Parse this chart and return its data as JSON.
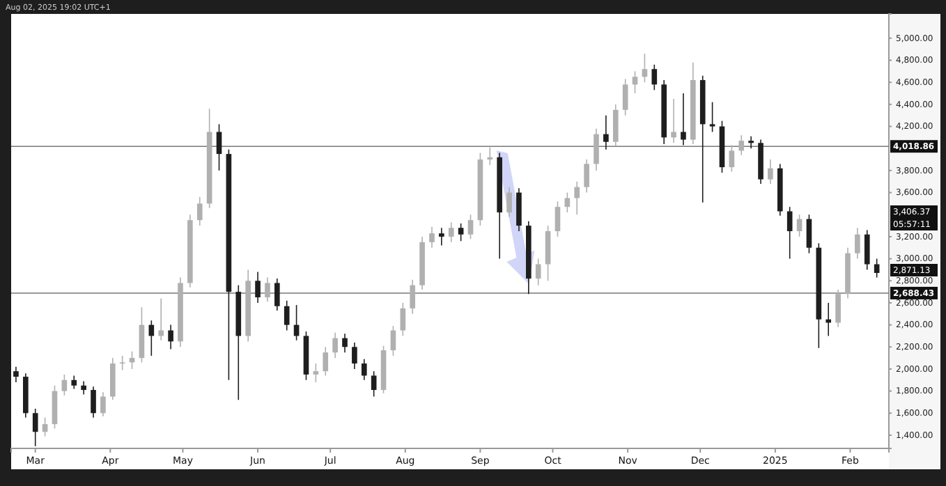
{
  "chart_data": {
    "type": "candlestick",
    "x": [
      "2024-02-22",
      "2024-02-26",
      "2024-03-01",
      "2024-03-05",
      "2024-03-09",
      "2024-03-13",
      "2024-03-17",
      "2024-03-21",
      "2024-03-25",
      "2024-03-29",
      "2024-04-02",
      "2024-04-06",
      "2024-04-10",
      "2024-04-14",
      "2024-04-18",
      "2024-04-22",
      "2024-04-26",
      "2024-04-30",
      "2024-05-04",
      "2024-05-08",
      "2024-05-12",
      "2024-05-16",
      "2024-05-20",
      "2024-05-24",
      "2024-05-28",
      "2024-06-01",
      "2024-06-05",
      "2024-06-09",
      "2024-06-13",
      "2024-06-17",
      "2024-06-21",
      "2024-06-25",
      "2024-06-29",
      "2024-07-03",
      "2024-07-07",
      "2024-07-11",
      "2024-07-15",
      "2024-07-19",
      "2024-07-23",
      "2024-07-27",
      "2024-07-31",
      "2024-08-04",
      "2024-08-08",
      "2024-08-12",
      "2024-08-16",
      "2024-08-20",
      "2024-08-24",
      "2024-08-28",
      "2024-09-01",
      "2024-09-05",
      "2024-09-09",
      "2024-09-13",
      "2024-09-17",
      "2024-09-21",
      "2024-09-25",
      "2024-09-29",
      "2024-10-03",
      "2024-10-07",
      "2024-10-11",
      "2024-10-15",
      "2024-10-19",
      "2024-10-23",
      "2024-10-27",
      "2024-10-31",
      "2024-11-04",
      "2024-11-08",
      "2024-11-12",
      "2024-11-16",
      "2024-11-20",
      "2024-11-24",
      "2024-11-28",
      "2024-12-02",
      "2024-12-06",
      "2024-12-10",
      "2024-12-14",
      "2024-12-18",
      "2024-12-22",
      "2024-12-26",
      "2024-12-30",
      "2025-01-03",
      "2025-01-07",
      "2025-01-11",
      "2025-01-15",
      "2025-01-19",
      "2025-01-23",
      "2025-01-27",
      "2025-01-31",
      "2025-02-04",
      "2025-02-08",
      "2025-02-12"
    ],
    "ohlc": [
      [
        1980,
        2020,
        1880,
        1930
      ],
      [
        1930,
        1960,
        1560,
        1600
      ],
      [
        1600,
        1640,
        1300,
        1430
      ],
      [
        1430,
        1560,
        1390,
        1500
      ],
      [
        1500,
        1850,
        1460,
        1800
      ],
      [
        1800,
        1950,
        1760,
        1900
      ],
      [
        1900,
        1940,
        1820,
        1850
      ],
      [
        1850,
        1890,
        1770,
        1810
      ],
      [
        1810,
        1840,
        1560,
        1600
      ],
      [
        1600,
        1790,
        1570,
        1750
      ],
      [
        1750,
        2100,
        1720,
        2050
      ],
      [
        2050,
        2120,
        1990,
        2060
      ],
      [
        2060,
        2160,
        2000,
        2100
      ],
      [
        2100,
        2560,
        2060,
        2400
      ],
      [
        2400,
        2440,
        2120,
        2300
      ],
      [
        2300,
        2640,
        2260,
        2350
      ],
      [
        2350,
        2400,
        2180,
        2250
      ],
      [
        2250,
        2830,
        2200,
        2780
      ],
      [
        2780,
        3400,
        2740,
        3350
      ],
      [
        3350,
        3560,
        3300,
        3500
      ],
      [
        3500,
        4360,
        3460,
        4150
      ],
      [
        4150,
        4220,
        3800,
        3950
      ],
      [
        3950,
        3990,
        1900,
        2700
      ],
      [
        2700,
        2760,
        1720,
        2300
      ],
      [
        2300,
        2900,
        2250,
        2800
      ],
      [
        2800,
        2880,
        2600,
        2650
      ],
      [
        2650,
        2830,
        2610,
        2780
      ],
      [
        2780,
        2820,
        2530,
        2570
      ],
      [
        2570,
        2620,
        2350,
        2400
      ],
      [
        2400,
        2580,
        2260,
        2300
      ],
      [
        2300,
        2340,
        1900,
        1950
      ],
      [
        1950,
        2050,
        1880,
        1980
      ],
      [
        1980,
        2200,
        1940,
        2150
      ],
      [
        2150,
        2330,
        2100,
        2280
      ],
      [
        2280,
        2320,
        2150,
        2200
      ],
      [
        2200,
        2240,
        2000,
        2050
      ],
      [
        2050,
        2090,
        1900,
        1940
      ],
      [
        1940,
        1980,
        1750,
        1810
      ],
      [
        1810,
        2210,
        1780,
        2170
      ],
      [
        2170,
        2390,
        2120,
        2350
      ],
      [
        2350,
        2600,
        2300,
        2550
      ],
      [
        2550,
        2810,
        2500,
        2760
      ],
      [
        2760,
        3200,
        2720,
        3150
      ],
      [
        3150,
        3290,
        3100,
        3230
      ],
      [
        3230,
        3280,
        3120,
        3200
      ],
      [
        3200,
        3330,
        3150,
        3280
      ],
      [
        3280,
        3320,
        3160,
        3220
      ],
      [
        3220,
        3400,
        3180,
        3350
      ],
      [
        3350,
        3960,
        3300,
        3900
      ],
      [
        3900,
        4010,
        3850,
        3920
      ],
      [
        3920,
        3960,
        3000,
        3420
      ],
      [
        3420,
        3650,
        3380,
        3600
      ],
      [
        3600,
        3640,
        3250,
        3300
      ],
      [
        3300,
        3340,
        2680,
        2820
      ],
      [
        2820,
        3000,
        2760,
        2950
      ],
      [
        2950,
        3300,
        2800,
        3250
      ],
      [
        3250,
        3520,
        3200,
        3470
      ],
      [
        3470,
        3600,
        3420,
        3550
      ],
      [
        3550,
        3700,
        3400,
        3650
      ],
      [
        3650,
        3900,
        3600,
        3860
      ],
      [
        3860,
        4180,
        3800,
        4130
      ],
      [
        4130,
        4300,
        3990,
        4060
      ],
      [
        4060,
        4400,
        4020,
        4350
      ],
      [
        4350,
        4630,
        4300,
        4580
      ],
      [
        4580,
        4700,
        4500,
        4650
      ],
      [
        4650,
        4860,
        4600,
        4720
      ],
      [
        4720,
        4760,
        4530,
        4580
      ],
      [
        4580,
        4620,
        4040,
        4100
      ],
      [
        4100,
        4450,
        4050,
        4150
      ],
      [
        4150,
        4500,
        4030,
        4080
      ],
      [
        4080,
        4780,
        4040,
        4620
      ],
      [
        4620,
        4660,
        3510,
        4220
      ],
      [
        4220,
        4420,
        4150,
        4200
      ],
      [
        4200,
        4250,
        3780,
        3830
      ],
      [
        3830,
        4030,
        3790,
        3980
      ],
      [
        3980,
        4120,
        3940,
        4070
      ],
      [
        4070,
        4110,
        4000,
        4050
      ],
      [
        4050,
        4080,
        3680,
        3720
      ],
      [
        3720,
        3900,
        3680,
        3820
      ],
      [
        3820,
        3860,
        3390,
        3430
      ],
      [
        3430,
        3470,
        3000,
        3250
      ],
      [
        3250,
        3400,
        3200,
        3360
      ],
      [
        3360,
        3400,
        3050,
        3100
      ],
      [
        3100,
        3140,
        2190,
        2450
      ],
      [
        2450,
        2600,
        2300,
        2420
      ],
      [
        2420,
        2720,
        2380,
        2680
      ],
      [
        2680,
        3100,
        2640,
        3050
      ],
      [
        3050,
        3280,
        3000,
        3220
      ],
      [
        3220,
        3260,
        2900,
        2950
      ],
      [
        2950,
        3000,
        2830,
        2871.13
      ]
    ],
    "colors": [
      "#1e1e1e",
      "#1e1e1e",
      "#1e1e1e",
      "#b0b0b0",
      "#b0b0b0",
      "#b0b0b0",
      "#1e1e1e",
      "#1e1e1e",
      "#1e1e1e",
      "#b0b0b0",
      "#b0b0b0",
      "#b0b0b0",
      "#b0b0b0",
      "#b0b0b0",
      "#1e1e1e",
      "#b0b0b0",
      "#1e1e1e",
      "#b0b0b0",
      "#b0b0b0",
      "#b0b0b0",
      "#b0b0b0",
      "#1e1e1e",
      "#1e1e1e",
      "#1e1e1e",
      "#b0b0b0",
      "#1e1e1e",
      "#b0b0b0",
      "#1e1e1e",
      "#1e1e1e",
      "#1e1e1e",
      "#1e1e1e",
      "#b0b0b0",
      "#b0b0b0",
      "#b0b0b0",
      "#1e1e1e",
      "#1e1e1e",
      "#1e1e1e",
      "#1e1e1e",
      "#b0b0b0",
      "#b0b0b0",
      "#b0b0b0",
      "#b0b0b0",
      "#b0b0b0",
      "#b0b0b0",
      "#1e1e1e",
      "#b0b0b0",
      "#1e1e1e",
      "#b0b0b0",
      "#b0b0b0",
      "#b0b0b0",
      "#1e1e1e",
      "#b0b0b0",
      "#1e1e1e",
      "#1e1e1e",
      "#b0b0b0",
      "#b0b0b0",
      "#b0b0b0",
      "#b0b0b0",
      "#b0b0b0",
      "#b0b0b0",
      "#b0b0b0",
      "#1e1e1e",
      "#b0b0b0",
      "#b0b0b0",
      "#b0b0b0",
      "#b0b0b0",
      "#1e1e1e",
      "#1e1e1e",
      "#b0b0b0",
      "#1e1e1e",
      "#b0b0b0",
      "#1e1e1e",
      "#1e1e1e",
      "#1e1e1e",
      "#b0b0b0",
      "#b0b0b0",
      "#1e1e1e",
      "#1e1e1e",
      "#b0b0b0",
      "#1e1e1e",
      "#1e1e1e",
      "#b0b0b0",
      "#1e1e1e",
      "#1e1e1e",
      "#1e1e1e",
      "#b0b0b0",
      "#b0b0b0",
      "#b0b0b0",
      "#1e1e1e",
      "#1e1e1e"
    ],
    "xlim": [
      "2024-02-20",
      "2025-02-17"
    ],
    "xticks": [
      {
        "value": "2024-03-01",
        "label": "Mar"
      },
      {
        "value": "2024-04-01",
        "label": "Apr"
      },
      {
        "value": "2024-05-01",
        "label": "May"
      },
      {
        "value": "2024-06-01",
        "label": "Jun"
      },
      {
        "value": "2024-07-01",
        "label": "Jul"
      },
      {
        "value": "2024-08-01",
        "label": "Aug"
      },
      {
        "value": "2024-09-01",
        "label": "Sep"
      },
      {
        "value": "2024-10-01",
        "label": "Oct"
      },
      {
        "value": "2024-11-01",
        "label": "Nov"
      },
      {
        "value": "2024-12-01",
        "label": "Dec"
      },
      {
        "value": "2025-01-01",
        "label": "2025"
      },
      {
        "value": "2025-02-01",
        "label": "Feb"
      }
    ],
    "ylim": [
      1280,
      5220
    ],
    "yticks": [
      {
        "value": 1400,
        "label": "1,400.00"
      },
      {
        "value": 1600,
        "label": "1,600.00"
      },
      {
        "value": 1800,
        "label": "1,800.00"
      },
      {
        "value": 2000,
        "label": "2,000.00"
      },
      {
        "value": 2200,
        "label": "2,200.00"
      },
      {
        "value": 2400,
        "label": "2,400.00"
      },
      {
        "value": 2600,
        "label": "2,600.00"
      },
      {
        "value": 2800,
        "label": "2,800.00"
      },
      {
        "value": 3000,
        "label": "3,000.00"
      },
      {
        "value": 3200,
        "label": "3,200.00"
      },
      {
        "value": 3600,
        "label": "3,600.00"
      },
      {
        "value": 3800,
        "label": "3,800.00"
      },
      {
        "value": 4200,
        "label": "4,200.00"
      },
      {
        "value": 4400,
        "label": "4,400.00"
      },
      {
        "value": 4600,
        "label": "4,600.00"
      },
      {
        "value": 4800,
        "label": "4,800.00"
      },
      {
        "value": 5000,
        "label": "5,000.00"
      }
    ],
    "ref_lines": [
      {
        "axis": "y",
        "value": 4018.86,
        "label": "4,018.86",
        "color": "#787878"
      },
      {
        "axis": "y",
        "value": 2688.43,
        "label": "2,688.43",
        "color": "#787878"
      }
    ],
    "annotations": [
      "Aug 02, 2025 19:02 UTC+1",
      "3,406.37",
      "05:57:11",
      "2,871.13"
    ],
    "grid": false
  }
}
